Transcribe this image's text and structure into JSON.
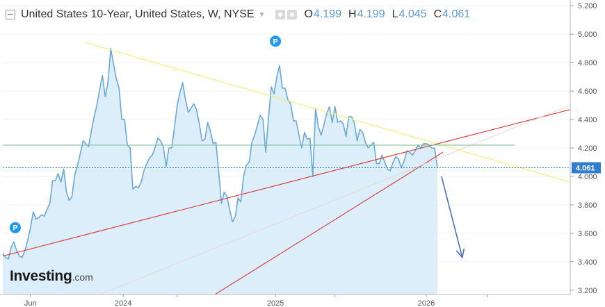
{
  "header": {
    "title": "United States 10-Year, United States, W, NYSE",
    "ohlc": [
      {
        "label": "O",
        "value": "4.199"
      },
      {
        "label": "H",
        "value": "4.199"
      },
      {
        "label": "L",
        "value": "4.045"
      },
      {
        "label": "C",
        "value": "4.061"
      }
    ]
  },
  "logo": {
    "brand": "Investing",
    "tld": ".com"
  },
  "colors": {
    "price_line": "#6aa8dc",
    "area_fill": "#dbeef9",
    "yellow_trend": "#f2ef7a",
    "red_trend": "#d94040",
    "green_level": "#7fbf9f",
    "current_price": "#2f7fd1",
    "arrow": "#4a72b8"
  },
  "chart_data": {
    "type": "line",
    "y_axis": {
      "ticks": [
        "5.200",
        "5.000",
        "4.800",
        "4.600",
        "4.400",
        "4.200",
        "4.000",
        "3.800",
        "3.600",
        "3.400",
        "3.200"
      ],
      "range": [
        3.17,
        5.24
      ],
      "side": "right"
    },
    "x_axis": {
      "ticks": [
        "Jun",
        "2024",
        "2025",
        "2026"
      ]
    },
    "current_price": {
      "value": 4.061,
      "label": "4.061"
    },
    "series": [
      {
        "values": [
          [
            0.0,
            3.46
          ],
          [
            2.0,
            3.43
          ],
          [
            4.0,
            3.42
          ],
          [
            6.0,
            3.5
          ],
          [
            8.0,
            3.54
          ],
          [
            10.0,
            3.48
          ],
          [
            12.0,
            3.44
          ],
          [
            14.0,
            3.43
          ],
          [
            16.0,
            3.48
          ],
          [
            18.0,
            3.55
          ],
          [
            20.0,
            3.64
          ],
          [
            22.0,
            3.75
          ],
          [
            24.0,
            3.7
          ],
          [
            26.0,
            3.71
          ],
          [
            28.0,
            3.73
          ],
          [
            30.0,
            3.72
          ],
          [
            32.0,
            3.77
          ],
          [
            34.0,
            3.81
          ],
          [
            36.0,
            3.97
          ],
          [
            38.0,
            3.97
          ],
          [
            40.0,
            4.02
          ],
          [
            42.0,
            3.96
          ],
          [
            44.0,
            4.05
          ],
          [
            46.0,
            3.89
          ],
          [
            48.0,
            3.83
          ],
          [
            50.0,
            3.86
          ],
          [
            52.0,
            4.01
          ],
          [
            54.0,
            4.08
          ],
          [
            56.0,
            4.16
          ],
          [
            58.0,
            4.25
          ],
          [
            60.0,
            4.23
          ],
          [
            62.0,
            4.21
          ],
          [
            64.0,
            4.32
          ],
          [
            66.0,
            4.42
          ],
          [
            68.0,
            4.5
          ],
          [
            70.0,
            4.61
          ],
          [
            72.0,
            4.71
          ],
          [
            74.0,
            4.56
          ],
          [
            76.0,
            4.66
          ],
          [
            78.0,
            4.9
          ],
          [
            80.0,
            4.79
          ],
          [
            82.0,
            4.69
          ],
          [
            84.0,
            4.62
          ],
          [
            86.0,
            4.4
          ],
          [
            88.0,
            4.4
          ],
          [
            90.0,
            4.22
          ],
          [
            92.0,
            4.2
          ],
          [
            94.0,
            3.91
          ],
          [
            96.0,
            3.93
          ],
          [
            98.0,
            3.92
          ],
          [
            100.0,
            3.96
          ],
          [
            102.0,
            4.04
          ],
          [
            104.0,
            4.09
          ],
          [
            106.0,
            4.13
          ],
          [
            108.0,
            4.15
          ],
          [
            110.0,
            4.2
          ],
          [
            112.0,
            4.27
          ],
          [
            114.0,
            4.25
          ],
          [
            116.0,
            4.21
          ],
          [
            118.0,
            4.07
          ],
          [
            120.0,
            4.2
          ],
          [
            122.0,
            4.2
          ],
          [
            124.0,
            4.34
          ],
          [
            126.0,
            4.5
          ],
          [
            128.0,
            4.59
          ],
          [
            130.0,
            4.66
          ],
          [
            132.0,
            4.54
          ],
          [
            134.0,
            4.45
          ],
          [
            136.0,
            4.48
          ],
          [
            138.0,
            4.51
          ],
          [
            140.0,
            4.47
          ],
          [
            142.0,
            4.37
          ],
          [
            144.0,
            4.25
          ],
          [
            146.0,
            4.26
          ],
          [
            148.0,
            4.38
          ],
          [
            150.0,
            4.32
          ],
          [
            152.0,
            4.23
          ],
          [
            154.0,
            4.24
          ],
          [
            156.0,
            4.03
          ],
          [
            158.0,
            3.81
          ],
          [
            160.0,
            3.89
          ],
          [
            162.0,
            3.86
          ],
          [
            164.0,
            3.76
          ],
          [
            166.0,
            3.68
          ],
          [
            168.0,
            3.72
          ],
          [
            170.0,
            3.85
          ],
          [
            172.0,
            3.82
          ],
          [
            174.0,
            4.0
          ],
          [
            176.0,
            4.08
          ],
          [
            178.0,
            4.1
          ],
          [
            180.0,
            4.24
          ],
          [
            182.0,
            4.29
          ],
          [
            184.0,
            4.36
          ],
          [
            186.0,
            4.43
          ],
          [
            188.0,
            4.4
          ],
          [
            190.0,
            4.17
          ],
          [
            192.0,
            4.41
          ],
          [
            194.0,
            4.63
          ],
          [
            196.0,
            4.58
          ],
          [
            198.0,
            4.7
          ],
          [
            200.0,
            4.78
          ],
          [
            202.0,
            4.62
          ],
          [
            204.0,
            4.62
          ],
          [
            206.0,
            4.54
          ],
          [
            208.0,
            4.51
          ],
          [
            210.0,
            4.39
          ],
          [
            212.0,
            4.39
          ],
          [
            214.0,
            4.29
          ],
          [
            216.0,
            4.2
          ],
          [
            218.0,
            4.31
          ],
          [
            220.0,
            4.26
          ],
          [
            222.0,
            4.27
          ],
          [
            224.0,
            4.0
          ],
          [
            226.0,
            4.48
          ],
          [
            228.0,
            4.35
          ],
          [
            230.0,
            4.29
          ],
          [
            232.0,
            4.36
          ],
          [
            234.0,
            4.44
          ],
          [
            236.0,
            4.49
          ],
          [
            238.0,
            4.38
          ],
          [
            240.0,
            4.49
          ],
          [
            242.0,
            4.38
          ],
          [
            244.0,
            4.39
          ],
          [
            246.0,
            4.37
          ],
          [
            248.0,
            4.28
          ],
          [
            250.0,
            4.42
          ],
          [
            252.0,
            4.42
          ],
          [
            254.0,
            4.38
          ],
          [
            256.0,
            4.25
          ],
          [
            258.0,
            4.33
          ],
          [
            260.0,
            4.31
          ],
          [
            262.0,
            4.24
          ],
          [
            264.0,
            4.2
          ],
          [
            266.0,
            4.22
          ],
          [
            268.0,
            4.24
          ],
          [
            270.0,
            4.09
          ],
          [
            272.0,
            4.09
          ],
          [
            274.0,
            4.15
          ],
          [
            276.0,
            4.1
          ],
          [
            278.0,
            4.05
          ],
          [
            280.0,
            4.04
          ],
          [
            282.0,
            4.1
          ],
          [
            284.0,
            4.14
          ],
          [
            286.0,
            4.12
          ],
          [
            288.0,
            4.06
          ],
          [
            290.0,
            4.11
          ],
          [
            292.0,
            4.18
          ],
          [
            294.0,
            4.17
          ],
          [
            296.0,
            4.15
          ],
          [
            298.0,
            4.18
          ],
          [
            300.0,
            4.22
          ],
          [
            302.0,
            4.2
          ],
          [
            304.0,
            4.23
          ],
          [
            306.0,
            4.23
          ],
          [
            308.0,
            4.22
          ],
          [
            310.0,
            4.2
          ],
          [
            312.0,
            4.199
          ],
          [
            314.0,
            4.061
          ]
        ]
      }
    ],
    "markers": [
      {
        "label": "P",
        "at": 9,
        "value": 3.64
      },
      {
        "label": "P",
        "at": 197,
        "value": 4.95
      }
    ],
    "projection_arrow": {
      "from": [
        317,
        4.0
      ],
      "to": [
        332,
        3.43
      ]
    },
    "horizontal_levels": [
      4.22
    ],
    "trend_lines": [
      {
        "color": "yellow",
        "from": [
          60,
          4.94
        ],
        "to": [
          410,
          3.96
        ]
      },
      {
        "color": "red",
        "from": [
          0,
          3.44
        ],
        "to": [
          410,
          4.47
        ]
      },
      {
        "color": "red",
        "from": [
          150,
          3.15
        ],
        "to": [
          318,
          4.17
        ]
      },
      {
        "color": "faint",
        "from": [
          70,
          3.17
        ],
        "to": [
          410,
          4.5
        ]
      }
    ]
  }
}
